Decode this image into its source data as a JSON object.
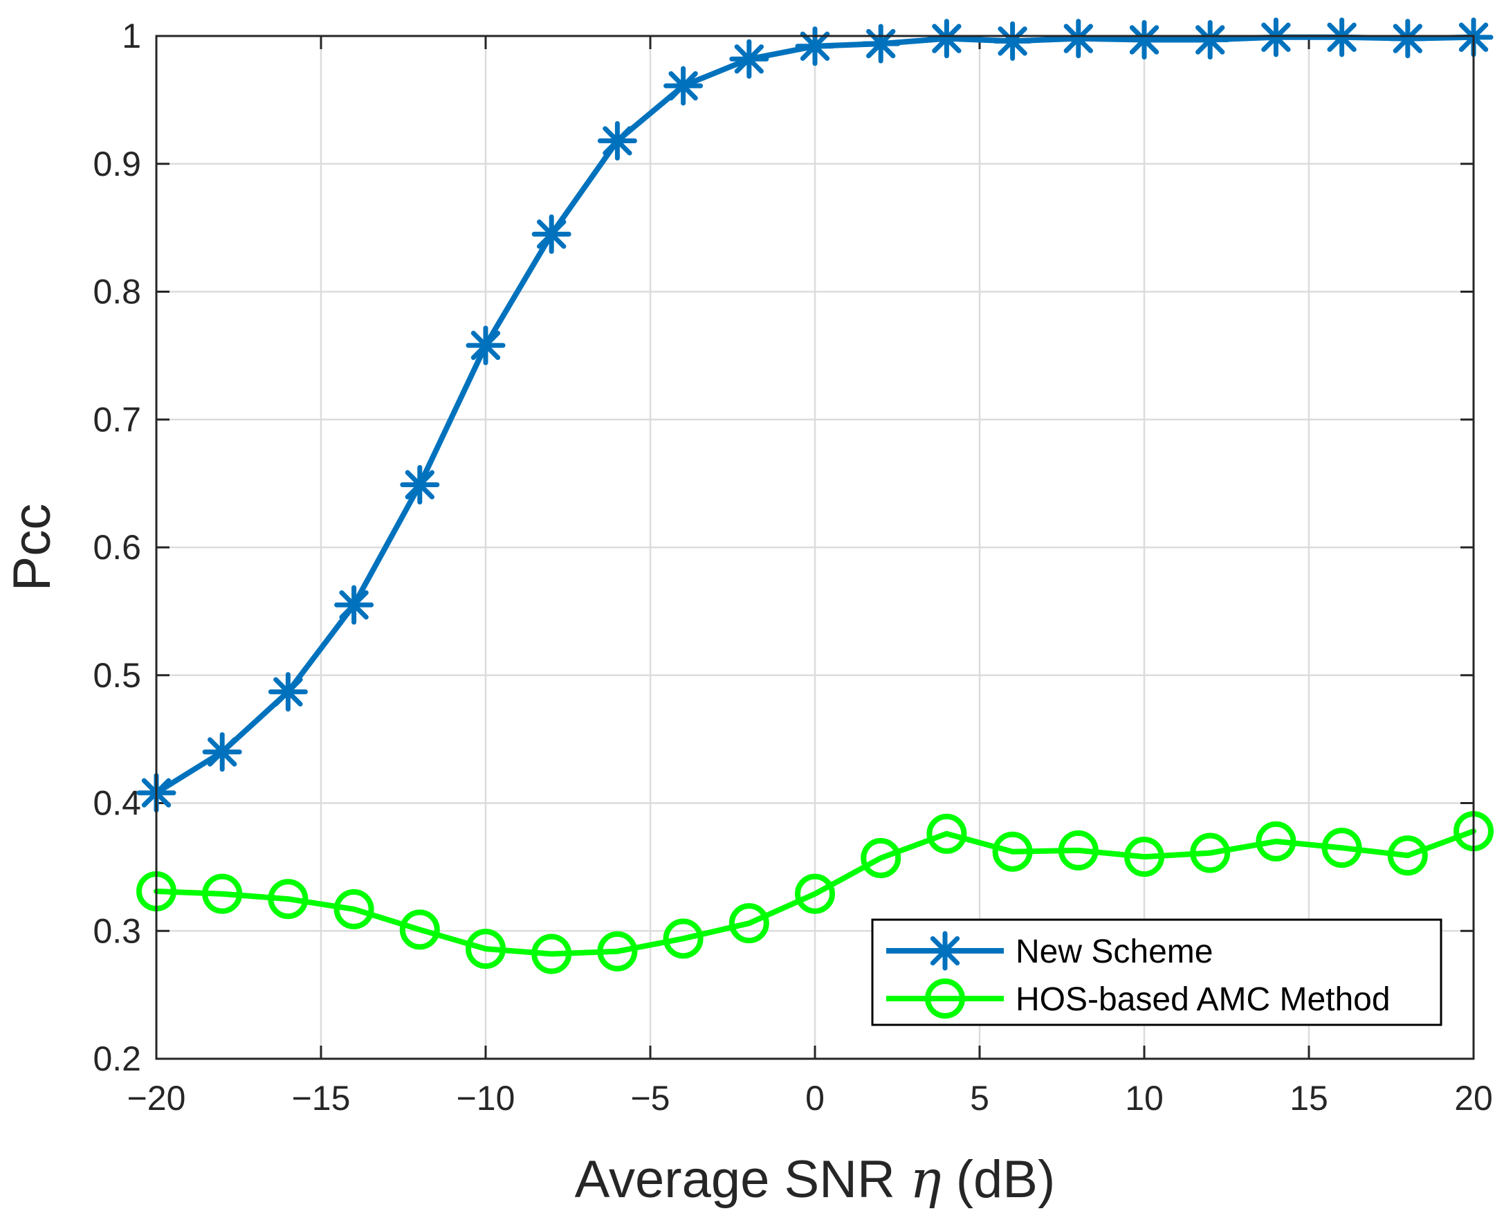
{
  "chart_data": {
    "type": "line",
    "xlabel_main": "Average SNR ",
    "xlabel_symbol": "η",
    "xlabel_unit": " (dB)",
    "ylabel": "Pcc",
    "xlim": [
      -20,
      20
    ],
    "ylim": [
      0.2,
      1
    ],
    "grid": true,
    "legend_position": "bottom-right",
    "x_ticks": [
      -20,
      -15,
      -10,
      -5,
      0,
      5,
      10,
      15,
      20
    ],
    "x_tick_labels": [
      "−20",
      "−15",
      "−10",
      "−5",
      "0",
      "5",
      "10",
      "15",
      "20"
    ],
    "y_ticks": [
      0.2,
      0.3,
      0.4,
      0.5,
      0.6,
      0.7,
      0.8,
      0.9,
      1
    ],
    "y_tick_labels": [
      "0.2",
      "0.3",
      "0.4",
      "0.5",
      "0.6",
      "0.7",
      "0.8",
      "0.9",
      "1"
    ],
    "x": [
      -20,
      -18,
      -16,
      -14,
      -12,
      -10,
      -8,
      -6,
      -4,
      -2,
      0,
      2,
      4,
      6,
      8,
      10,
      12,
      14,
      16,
      18,
      20
    ],
    "series": [
      {
        "name": "New Scheme",
        "color": "#0072BD",
        "marker": "asterisk",
        "values": [
          0.408,
          0.44,
          0.487,
          0.555,
          0.649,
          0.758,
          0.845,
          0.918,
          0.961,
          0.982,
          0.992,
          0.994,
          0.998,
          0.996,
          0.998,
          0.997,
          0.997,
          0.999,
          0.999,
          0.998,
          0.999
        ]
      },
      {
        "name": "HOS-based AMC Method",
        "color": "#00FF00",
        "marker": "circle",
        "values": [
          0.331,
          0.329,
          0.325,
          0.317,
          0.301,
          0.286,
          0.282,
          0.284,
          0.294,
          0.306,
          0.329,
          0.357,
          0.376,
          0.362,
          0.363,
          0.358,
          0.361,
          0.37,
          0.365,
          0.359,
          0.378
        ]
      }
    ]
  }
}
